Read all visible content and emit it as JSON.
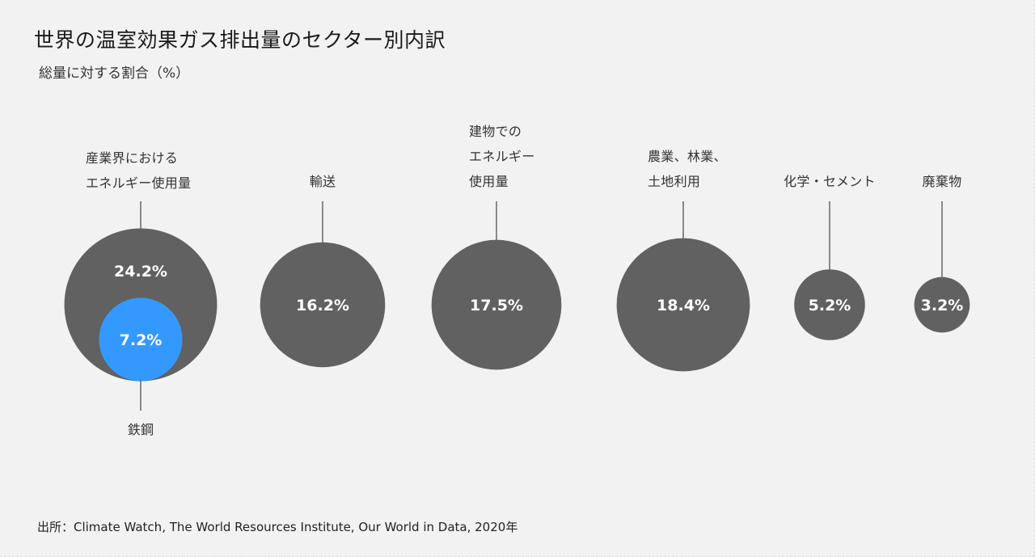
{
  "title": "世界の温室効果ガス排出量のセクター別内訳",
  "subtitle": "総量に対する割合（%）",
  "source": "出所：Climate Watch, The World Resources Institute, Our World in Data, 2020年",
  "colors": {
    "background": "#f2f2f2",
    "circle": "#616161",
    "highlight": "#3399ff",
    "line": "#666666"
  },
  "chart_data": {
    "type": "bubble",
    "unit": "%",
    "series": [
      {
        "label_lines": [
          "産業界における",
          "エネルギー使用量"
        ],
        "value": 24.2,
        "display": "24.2%",
        "sub": {
          "label": "鉄鋼",
          "value": 7.2,
          "display": "7.2%"
        }
      },
      {
        "label_lines": [
          "輸送"
        ],
        "value": 16.2,
        "display": "16.2%"
      },
      {
        "label_lines": [
          "建物での",
          "エネルギー",
          "使用量"
        ],
        "value": 17.5,
        "display": "17.5%"
      },
      {
        "label_lines": [
          "農業、林業、",
          "土地利用"
        ],
        "value": 18.4,
        "display": "18.4%"
      },
      {
        "label_lines": [
          "化学・セメント"
        ],
        "value": 5.2,
        "display": "5.2%"
      },
      {
        "label_lines": [
          "廃棄物"
        ],
        "value": 3.2,
        "display": "3.2%"
      }
    ]
  }
}
